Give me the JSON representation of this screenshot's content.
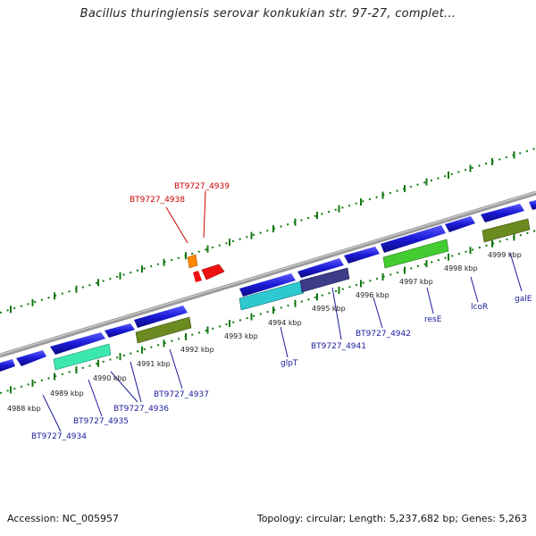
{
  "title": "Bacillus thuringiensis serovar konkukian str. 97-27, complet...",
  "accession_label": "Accession: NC_005957",
  "summary_label": "Topology: circular; Length: 5,237,682 bp; Genes: 5,263",
  "ruler_labels": [
    "4988 kbp",
    "4989 kbp",
    "4990 kbp",
    "4991 kbp",
    "4992 kbp",
    "4993 kbp",
    "4994 kbp",
    "4995 kbp",
    "4996 kbp",
    "4997 kbp",
    "4998 kbp",
    "4999 kbp"
  ],
  "gene_labels": [
    "BT9727_4934",
    "BT9727_4935",
    "BT9727_4936",
    "BT9727_4937",
    "glpT",
    "BT9727_4941",
    "BT9727_4942",
    "resE",
    "lcoR",
    "galE"
  ],
  "highlight_labels": [
    "BT9727_4938",
    "BT9727_4939"
  ],
  "colors": {
    "cds": "#1a1ad6",
    "cds_alt_cyan": "#2ec8d0",
    "cds_alt_mint": "#3de8b0",
    "cds_alt_green": "#44cc33",
    "cds_alt_olive": "#6b8a20",
    "cds_alt_slate": "#3c3c88",
    "highlight": "#ee1111",
    "highlight_small": "#ff8800",
    "backbone": "#888888",
    "ticks": "#117711"
  }
}
